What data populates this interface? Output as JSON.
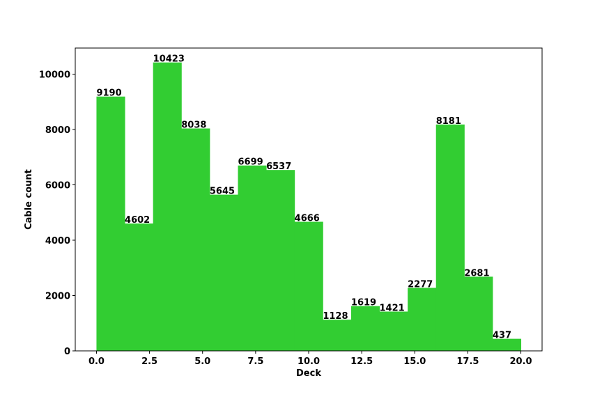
{
  "chart_data": {
    "type": "bar",
    "title": "",
    "xlabel": "Deck",
    "ylabel": "Cable count",
    "bins_start": [
      0.0,
      1.333,
      2.667,
      4.0,
      5.333,
      6.667,
      8.0,
      9.333,
      10.667,
      12.0,
      13.333,
      14.667,
      16.0,
      17.333,
      18.667
    ],
    "bin_width": 1.333,
    "values": [
      9190,
      4602,
      10423,
      8038,
      5645,
      6699,
      6537,
      4666,
      1128,
      1619,
      1421,
      2277,
      8181,
      2681,
      437
    ],
    "value_labels": [
      "9190",
      "4602",
      "10423",
      "8038",
      "5645",
      "6699",
      "6537",
      "4666",
      "1128",
      "1619",
      "1421",
      "2277",
      "8181",
      "2681",
      "437"
    ],
    "xlim": [
      -1.0,
      21.0
    ],
    "ylim": [
      0,
      10944
    ],
    "xticks": [
      0.0,
      2.5,
      5.0,
      7.5,
      10.0,
      12.5,
      15.0,
      17.5,
      20.0
    ],
    "xtick_labels": [
      "0.0",
      "2.5",
      "5.0",
      "7.5",
      "10.0",
      "12.5",
      "15.0",
      "17.5",
      "20.0"
    ],
    "yticks": [
      0,
      2000,
      4000,
      6000,
      8000,
      10000
    ],
    "ytick_labels": [
      "0",
      "2000",
      "4000",
      "6000",
      "8000",
      "10000"
    ],
    "bar_color": "#32cd32",
    "grid": false,
    "legend": "none"
  }
}
